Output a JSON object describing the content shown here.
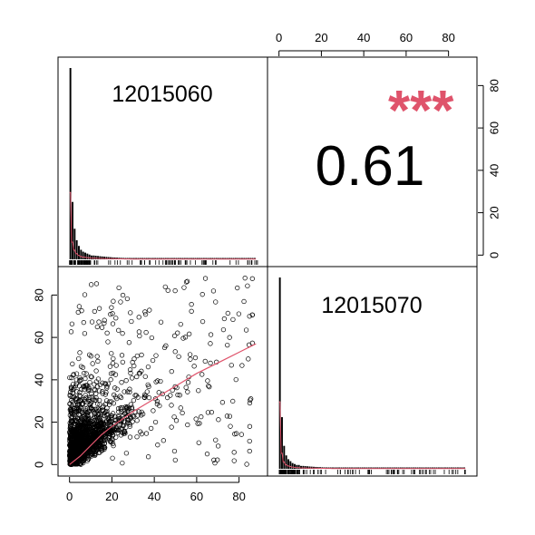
{
  "chart_data": {
    "type": "scatter",
    "layout": "pairs-panel matrix (2x2)",
    "variables": [
      "12015060",
      "12015070"
    ],
    "correlation": {
      "value": "0.61",
      "significance": "***",
      "significance_color": "#DF536B"
    },
    "axis": {
      "range": [
        0,
        90
      ],
      "ticks": [
        "0",
        "20",
        "40",
        "60",
        "80"
      ],
      "top_axis_ticks": [
        "0",
        "20",
        "40",
        "60",
        "80"
      ],
      "right_axis_ticks": [
        "0",
        "20",
        "40",
        "60",
        "80"
      ],
      "left_axis_ticks": [
        "0",
        "20",
        "40",
        "60",
        "80"
      ],
      "bottom_axis_ticks": [
        "0",
        "20",
        "40",
        "60",
        "80"
      ]
    },
    "diagonal_histograms": {
      "description": "strongly right-skewed distributions concentrated near 0",
      "bin_width": 1,
      "density_line_color": "#DF536B",
      "var1_relative_counts": [
        1.0,
        0.3,
        0.16,
        0.1,
        0.07,
        0.05,
        0.04,
        0.035,
        0.03,
        0.025,
        0.02,
        0.02
      ],
      "var2_relative_counts": [
        1.0,
        0.27,
        0.12,
        0.07,
        0.05,
        0.04,
        0.03,
        0.025,
        0.02,
        0.02,
        0.015,
        0.015
      ]
    },
    "scatter": {
      "x_variable": "12015060",
      "y_variable": "12015070",
      "marker": "open circle",
      "smooth_line_color": "#DF536B",
      "smooth_line": {
        "x": [
          0,
          5,
          10,
          15,
          20,
          30,
          40,
          50,
          60,
          70,
          80,
          88
        ],
        "y": [
          0,
          4,
          9,
          14,
          18,
          25,
          31,
          37,
          43,
          48,
          53,
          57
        ]
      }
    }
  }
}
